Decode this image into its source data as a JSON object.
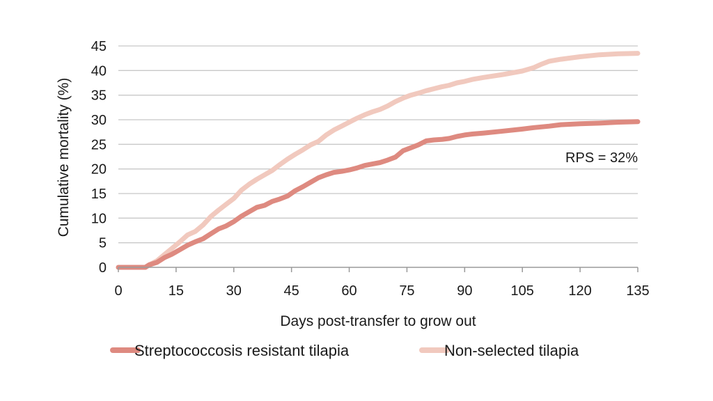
{
  "chart_data": {
    "type": "line",
    "xlabel": "Days post-transfer to grow out",
    "ylabel": "Cumulative mortality (%)",
    "xlim": [
      0,
      135
    ],
    "ylim": [
      0,
      45
    ],
    "x_ticks": [
      0,
      15,
      30,
      45,
      60,
      75,
      90,
      105,
      120,
      135
    ],
    "y_ticks": [
      0,
      5,
      10,
      15,
      20,
      25,
      30,
      35,
      40,
      45
    ],
    "grid": "horizontal",
    "legend_position": "bottom",
    "annotation": "RPS = 32%",
    "series": [
      {
        "name": "Streptococcosis resistant tilapia",
        "color": "#de8a80",
        "points": [
          [
            0,
            0
          ],
          [
            7,
            0
          ],
          [
            8,
            0.5
          ],
          [
            10,
            1
          ],
          [
            12,
            2
          ],
          [
            14,
            2.7
          ],
          [
            16,
            3.6
          ],
          [
            18,
            4.5
          ],
          [
            20,
            5.2
          ],
          [
            22,
            5.8
          ],
          [
            24,
            6.8
          ],
          [
            26,
            7.8
          ],
          [
            28,
            8.4
          ],
          [
            30,
            9.3
          ],
          [
            32,
            10.4
          ],
          [
            34,
            11.3
          ],
          [
            36,
            12.2
          ],
          [
            38,
            12.6
          ],
          [
            40,
            13.4
          ],
          [
            42,
            13.9
          ],
          [
            44,
            14.5
          ],
          [
            46,
            15.6
          ],
          [
            48,
            16.4
          ],
          [
            50,
            17.3
          ],
          [
            52,
            18.2
          ],
          [
            54,
            18.8
          ],
          [
            56,
            19.3
          ],
          [
            58,
            19.5
          ],
          [
            60,
            19.8
          ],
          [
            62,
            20.2
          ],
          [
            64,
            20.7
          ],
          [
            66,
            21.0
          ],
          [
            68,
            21.3
          ],
          [
            70,
            21.8
          ],
          [
            72,
            22.4
          ],
          [
            74,
            23.7
          ],
          [
            76,
            24.3
          ],
          [
            78,
            24.9
          ],
          [
            80,
            25.7
          ],
          [
            82,
            25.9
          ],
          [
            84,
            26.0
          ],
          [
            86,
            26.2
          ],
          [
            88,
            26.6
          ],
          [
            90,
            26.9
          ],
          [
            92,
            27.1
          ],
          [
            95,
            27.3
          ],
          [
            100,
            27.7
          ],
          [
            105,
            28.1
          ],
          [
            108,
            28.4
          ],
          [
            112,
            28.7
          ],
          [
            115,
            29.0
          ],
          [
            120,
            29.2
          ],
          [
            125,
            29.3
          ],
          [
            130,
            29.5
          ],
          [
            135,
            29.6
          ]
        ]
      },
      {
        "name": "Non-selected tilapia",
        "color": "#f1c9be",
        "points": [
          [
            0,
            0
          ],
          [
            7,
            0
          ],
          [
            8,
            0.5
          ],
          [
            10,
            1.3
          ],
          [
            12,
            2.6
          ],
          [
            14,
            3.9
          ],
          [
            16,
            5.2
          ],
          [
            18,
            6.6
          ],
          [
            20,
            7.3
          ],
          [
            22,
            8.6
          ],
          [
            24,
            10.3
          ],
          [
            26,
            11.6
          ],
          [
            28,
            12.8
          ],
          [
            30,
            14.0
          ],
          [
            32,
            15.7
          ],
          [
            34,
            16.9
          ],
          [
            36,
            17.9
          ],
          [
            38,
            18.8
          ],
          [
            40,
            19.7
          ],
          [
            42,
            20.9
          ],
          [
            44,
            22.0
          ],
          [
            46,
            23.0
          ],
          [
            48,
            23.9
          ],
          [
            50,
            24.9
          ],
          [
            52,
            25.6
          ],
          [
            54,
            26.9
          ],
          [
            56,
            27.9
          ],
          [
            58,
            28.7
          ],
          [
            60,
            29.5
          ],
          [
            62,
            30.3
          ],
          [
            64,
            31.0
          ],
          [
            66,
            31.6
          ],
          [
            68,
            32.1
          ],
          [
            70,
            32.8
          ],
          [
            72,
            33.7
          ],
          [
            74,
            34.4
          ],
          [
            76,
            35.0
          ],
          [
            78,
            35.4
          ],
          [
            80,
            35.9
          ],
          [
            82,
            36.3
          ],
          [
            84,
            36.7
          ],
          [
            86,
            37.0
          ],
          [
            88,
            37.5
          ],
          [
            90,
            37.8
          ],
          [
            92,
            38.2
          ],
          [
            95,
            38.6
          ],
          [
            100,
            39.2
          ],
          [
            105,
            39.9
          ],
          [
            108,
            40.6
          ],
          [
            110,
            41.3
          ],
          [
            112,
            41.9
          ],
          [
            115,
            42.3
          ],
          [
            120,
            42.8
          ],
          [
            125,
            43.2
          ],
          [
            130,
            43.4
          ],
          [
            135,
            43.5
          ]
        ]
      }
    ]
  }
}
